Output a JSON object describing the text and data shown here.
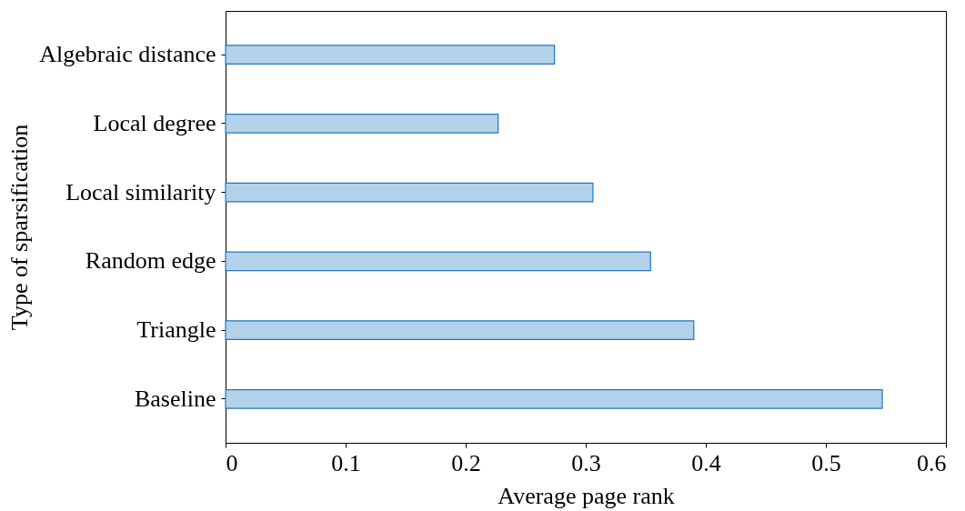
{
  "chart_data": {
    "type": "bar",
    "orientation": "horizontal",
    "xlabel": "Average page rank",
    "ylabel": "Type of sparsification",
    "categories": [
      "Algebraic distance",
      "Local degree",
      "Local similarity",
      "Random edge",
      "Triangle",
      "Baseline"
    ],
    "values": [
      0.274,
      0.227,
      0.306,
      0.354,
      0.39,
      0.547
    ],
    "color": "#b3d1e8",
    "xlim": [
      0,
      0.6
    ],
    "xticks": [
      0,
      0.1,
      0.2,
      0.3,
      0.4,
      0.5,
      0.6
    ],
    "grid": false
  }
}
